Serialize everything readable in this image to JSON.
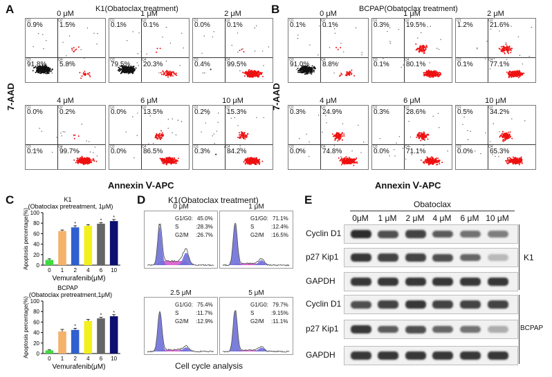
{
  "panels": {
    "A": {
      "letter": "A",
      "title": "K1(Obatoclax treatment)"
    },
    "B": {
      "letter": "B",
      "title": "BCPAP(Obatoclax treatment)"
    },
    "C": {
      "letter": "C"
    },
    "D": {
      "letter": "D",
      "title": "K1(Obatoclax treatment)",
      "xlabel": "Cell cycle analysis"
    },
    "E": {
      "letter": "E",
      "header": "Obatoclax"
    }
  },
  "flow_axis": {
    "y": "7-AAD",
    "x": "Annexin Ⅴ-APC"
  },
  "quadrant_tags": {
    "q1": "Q1",
    "q2": "Q2",
    "q3": "Q3",
    "q4": "Q4"
  },
  "flow_K1": [
    {
      "dose": "0 μM",
      "q1": "0.9%",
      "q2": "1.5%",
      "q3": "91.8%",
      "q4": "5.8%"
    },
    {
      "dose": "1 μM",
      "q1": "0.1%",
      "q2": "0.1%",
      "q3": "79.5%",
      "q4": "20.3%"
    },
    {
      "dose": "2 μM",
      "q1": "0.0%",
      "q2": "0.1%",
      "q3": "0.4%",
      "q4": "99.5%"
    },
    {
      "dose": "4 μM",
      "q1": "0.0%",
      "q2": "0.2%",
      "q3": "0.1%",
      "q4": "99.7%"
    },
    {
      "dose": "6 μM",
      "q1": "0.0%",
      "q2": "13.5%",
      "q3": "0.0%",
      "q4": "86.5%"
    },
    {
      "dose": "10 μM",
      "q1": "0.2%",
      "q2": "15.3%",
      "q3": "0.3%",
      "q4": "84.2%"
    }
  ],
  "flow_BCPAP": [
    {
      "dose": "0 μM",
      "q1": "0.1%",
      "q2": "0.1%",
      "q3": "91.0%",
      "q4": "8.8%"
    },
    {
      "dose": "1 μM",
      "q1": "0.3%",
      "q2": "19.5%",
      "q3": "0.1%",
      "q4": "80.1%"
    },
    {
      "dose": "2 μM",
      "q1": "1.2%",
      "q2": "21.6%",
      "q3": "0.1%",
      "q4": "77.1%"
    },
    {
      "dose": "4 μM",
      "q1": "0.3%",
      "q2": "24.9%",
      "q3": "0.0%",
      "q4": "74.8%"
    },
    {
      "dose": "6 μM",
      "q1": "0.3%",
      "q2": "28.6%",
      "q3": "0.0%",
      "q4": "71.1%"
    },
    {
      "dose": "10 μM",
      "q1": "0.5%",
      "q2": "34.2%",
      "q3": "0.0%",
      "q4": "65.3%"
    }
  ],
  "cell_cycle": [
    {
      "name": "0 μM",
      "g1_label": "G1/G0:",
      "g1": "45.0%",
      "s_label": "S",
      "s": ":28.3%",
      "g2_label": "G2/M",
      "g2": ":26.7%"
    },
    {
      "name": "1 μM",
      "g1_label": "G1/G0:",
      "g1": "71.1%",
      "s_label": "S",
      "s": ":12.4%",
      "g2_label": "G2/M",
      "g2": ":16.5%"
    },
    {
      "name": "2.5 μM",
      "g1_label": "G1/G0:",
      "g1": "75.4%",
      "s_label": "S",
      "s": ":11.7%",
      "g2_label": "G2/M",
      "g2": ":12.9%"
    },
    {
      "name": "5 μM",
      "g1_label": "G1/G0:",
      "g1": "79.7%",
      "s_label": "S",
      "s": ":9.15%",
      "g2_label": "G2/M",
      "g2": ":11.1%"
    }
  ],
  "western": {
    "lanes": [
      "0μM",
      "1 μM",
      "2 μM",
      "4 μM",
      "6 μM",
      "10 μM"
    ],
    "groups": [
      {
        "cell_line": "K1",
        "rows": [
          {
            "label": "Cyclin D1",
            "intensity": [
              0.9,
              0.75,
              0.8,
              0.7,
              0.6,
              0.55
            ]
          },
          {
            "label": "p27 Kip1",
            "intensity": [
              0.85,
              0.8,
              0.8,
              0.75,
              0.65,
              0.3
            ]
          },
          {
            "label": "GAPDH",
            "intensity": [
              0.85,
              0.85,
              0.85,
              0.85,
              0.85,
              0.85
            ]
          }
        ]
      },
      {
        "cell_line": "BCPAP",
        "rows": [
          {
            "label": "Cyclin D1",
            "intensity": [
              0.75,
              0.8,
              0.85,
              0.8,
              0.8,
              0.8
            ]
          },
          {
            "label": "p27 Kip1",
            "intensity": [
              0.85,
              0.7,
              0.75,
              0.65,
              0.6,
              0.35
            ]
          },
          {
            "label": "GAPDH",
            "intensity": [
              0.85,
              0.85,
              0.85,
              0.85,
              0.85,
              0.85
            ]
          }
        ]
      }
    ]
  },
  "chart_data": [
    {
      "type": "bar",
      "title": "K1",
      "subtitle": "(Obatoclax pretreatment, 1μM)",
      "categories": [
        "0",
        "1",
        "2",
        "4",
        "6",
        "10"
      ],
      "values": [
        10,
        65,
        72,
        75,
        79,
        84
      ],
      "errors": [
        2,
        2,
        3,
        2,
        2,
        3
      ],
      "significance": [
        "",
        "",
        "*",
        "",
        "*",
        "*"
      ],
      "colors": [
        "#3ddc3d",
        "#f4b26a",
        "#2f5fd0",
        "#f3f01c",
        "#666666",
        "#0d1070"
      ],
      "xlabel": "Vemurafenib(μM)",
      "ylabel": "Apoptosis percentage(%)",
      "ylim": [
        0,
        100
      ],
      "yticks": [
        "0",
        "20",
        "40",
        "60",
        "80",
        "100"
      ]
    },
    {
      "type": "bar",
      "title": "BCPAP",
      "subtitle": "(Obatoclax pretreatment,1μM)",
      "categories": [
        "0",
        "1",
        "2",
        "4",
        "6",
        "10"
      ],
      "values": [
        6,
        42,
        45,
        62,
        67,
        71
      ],
      "errors": [
        1,
        4,
        3,
        3,
        2,
        3
      ],
      "significance": [
        "",
        "",
        "*",
        "",
        "*",
        "*"
      ],
      "colors": [
        "#3ddc3d",
        "#f4b26a",
        "#2f5fd0",
        "#f3f01c",
        "#666666",
        "#0d1070"
      ],
      "xlabel": "Vemurafenib(μM)",
      "ylabel": "Apoptosis percentage(%)",
      "ylim": [
        0,
        100
      ],
      "yticks": [
        "0",
        "20",
        "40",
        "60",
        "80",
        "100"
      ]
    }
  ]
}
